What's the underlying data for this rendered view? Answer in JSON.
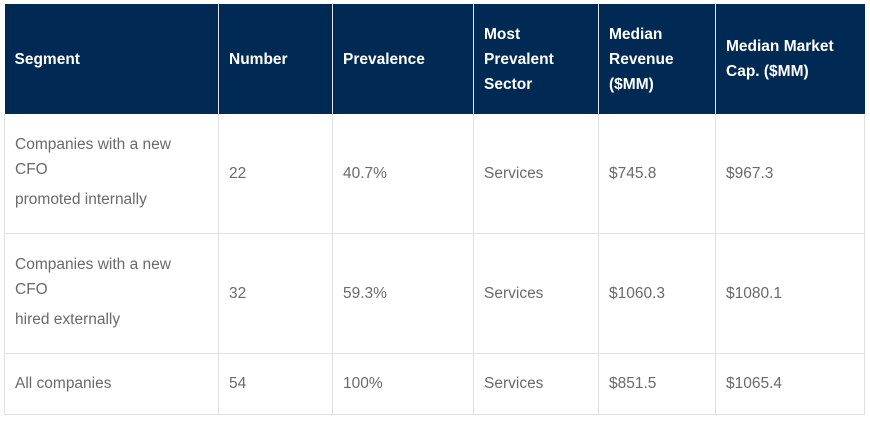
{
  "table": {
    "headers": {
      "segment": "Segment",
      "number": "Number",
      "prevalence": "Prevalence",
      "sector_line1": "Most",
      "sector_line2": "Prevalent",
      "sector_line3": "Sector",
      "revenue_line1": "Median",
      "revenue_line2": "Revenue",
      "revenue_line3": "($MM)",
      "marketcap_line1": "Median Market",
      "marketcap_line2": "Cap. ($MM)"
    },
    "rows": [
      {
        "segment_line1": "Companies with a new",
        "segment_line2": "CFO",
        "segment_line3": "promoted internally",
        "number": "22",
        "prevalence": "40.7%",
        "sector": "Services",
        "revenue": "$745.8",
        "marketcap": "$967.3"
      },
      {
        "segment_line1": "Companies with a new",
        "segment_line2": "CFO",
        "segment_line3": "hired externally",
        "number": "32",
        "prevalence": "59.3%",
        "sector": "Services",
        "revenue": "$1060.3",
        "marketcap": "$1080.1"
      },
      {
        "segment_line1": "All companies",
        "number": "54",
        "prevalence": "100%",
        "sector": "Services",
        "revenue": "$851.5",
        "marketcap": "$1065.4"
      }
    ]
  }
}
